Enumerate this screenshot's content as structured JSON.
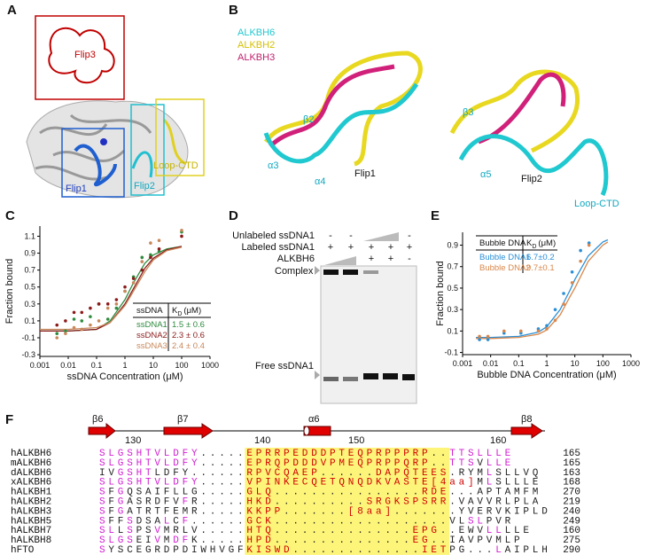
{
  "panel_labels": [
    "A",
    "B",
    "C",
    "D",
    "E",
    "F"
  ],
  "panel_a": {
    "regions": [
      "Flip3",
      "Flip1",
      "Flip2",
      "Loop-CTD"
    ]
  },
  "panel_b": {
    "legend": [
      "ALKBH6",
      "ALKBH2",
      "ALKBH3"
    ],
    "labels": [
      "β2",
      "α3",
      "α4",
      "Flip1",
      "β3",
      "α5",
      "Flip2",
      "Loop-CTD"
    ]
  },
  "chart_data": [
    {
      "type": "scatter",
      "xlabel": "ssDNA Concentration (μM)",
      "ylabel": "Fraction bound",
      "log_x": true,
      "xlim": [
        0.001,
        1000
      ],
      "xticks": [
        0.001,
        0.01,
        0.1,
        1,
        10,
        100,
        1000
      ],
      "ylim": [
        -0.32,
        1.22
      ],
      "yticks": [
        -0.3,
        -0.1,
        0.1,
        0.3,
        0.5,
        0.7,
        0.9,
        1.1
      ],
      "x": [
        0.004,
        0.008,
        0.016,
        0.03,
        0.06,
        0.12,
        0.25,
        0.5,
        1,
        2,
        4,
        8,
        16,
        100
      ],
      "series": [
        {
          "name": "ssDNA1",
          "color": "#2e8b3e",
          "values": [
            -0.05,
            -0.02,
            0.12,
            0.1,
            0.15,
            0.3,
            0.12,
            0.25,
            0.45,
            0.62,
            0.85,
            0.88,
            0.92,
            1.15
          ]
        },
        {
          "name": "ssDNA2",
          "color": "#8b1a1a",
          "values": [
            0.05,
            0.1,
            0.2,
            0.2,
            0.25,
            0.3,
            0.3,
            0.35,
            0.5,
            0.6,
            0.7,
            0.85,
            0.95,
            1.1
          ]
        },
        {
          "name": "ssDNA3",
          "color": "#c8875a",
          "values": [
            -0.1,
            -0.05,
            0.02,
            0.0,
            0.05,
            0.1,
            0.25,
            0.3,
            0.45,
            0.55,
            0.8,
            1.02,
            1.05,
            1.17
          ]
        }
      ],
      "fits": [
        {
          "color": "#2e8b3e",
          "x": [
            0.001,
            0.01,
            0.1,
            0.3,
            1,
            2,
            5,
            10,
            30,
            100
          ],
          "values": [
            -0.02,
            -0.02,
            0.0,
            0.1,
            0.35,
            0.55,
            0.78,
            0.88,
            0.95,
            0.98
          ]
        },
        {
          "color": "#8b1a1a",
          "x": [
            0.001,
            0.01,
            0.1,
            0.3,
            1,
            2,
            5,
            10,
            30,
            100
          ],
          "values": [
            -0.02,
            -0.02,
            0.0,
            0.08,
            0.3,
            0.48,
            0.72,
            0.84,
            0.94,
            0.98
          ]
        },
        {
          "color": "#c8875a",
          "x": [
            0.001,
            0.01,
            0.1,
            0.3,
            1,
            2,
            5,
            10,
            30,
            100
          ],
          "values": [
            0.0,
            0.0,
            0.02,
            0.08,
            0.28,
            0.45,
            0.68,
            0.82,
            0.93,
            0.97
          ]
        }
      ],
      "table": {
        "title": "ssDNA",
        "kd_symbol": "K",
        "kd_subscript": "D",
        "kd_unit": "(μM)",
        "kd_values": [
          "1.5 ± 0.6",
          "2.3 ± 0.6",
          "2.4 ± 0.4"
        ]
      }
    },
    {
      "type": "scatter",
      "xlabel": "Bubble DNA Concentration (μM)",
      "ylabel": "Fraction bound",
      "log_x": true,
      "xlim": [
        0.001,
        1000
      ],
      "xticks": [
        0.001,
        0.01,
        0.1,
        1,
        10,
        100,
        1000
      ],
      "ylim": [
        -0.12,
        1.02
      ],
      "yticks": [
        -0.1,
        0.1,
        0.3,
        0.5,
        0.7,
        0.9
      ],
      "x": [
        0.004,
        0.008,
        0.03,
        0.12,
        0.5,
        1,
        2,
        4,
        8,
        16,
        32
      ],
      "series": [
        {
          "name": "Bubble DNA1",
          "color": "#2a8fd6",
          "values": [
            0.02,
            0.02,
            0.08,
            0.08,
            0.12,
            0.15,
            0.3,
            0.45,
            0.65,
            0.85,
            0.92
          ]
        },
        {
          "name": "Bubble DNA2",
          "color": "#d8874a",
          "values": [
            0.05,
            0.05,
            0.1,
            0.1,
            0.1,
            0.12,
            0.2,
            0.35,
            0.55,
            0.75,
            0.9
          ]
        }
      ],
      "fits": [
        {
          "color": "#2a8fd6",
          "x": [
            0.003,
            0.01,
            0.1,
            0.5,
            1,
            3,
            6.7,
            10,
            30,
            100,
            150
          ],
          "values": [
            0.04,
            0.04,
            0.05,
            0.09,
            0.14,
            0.3,
            0.48,
            0.58,
            0.8,
            0.93,
            0.95
          ]
        },
        {
          "color": "#d8874a",
          "x": [
            0.003,
            0.01,
            0.1,
            0.5,
            1,
            3,
            6.7,
            10,
            30,
            100,
            150
          ],
          "values": [
            0.03,
            0.03,
            0.04,
            0.07,
            0.11,
            0.25,
            0.42,
            0.5,
            0.75,
            0.9,
            0.93
          ]
        }
      ],
      "table": {
        "title": "Bubble DNA",
        "kd_symbol": "K",
        "kd_subscript": "D",
        "kd_unit": "(μM)",
        "kd_values": [
          "6.7±0.2",
          "9.7±0.1"
        ]
      }
    }
  ],
  "panel_d": {
    "rows": [
      {
        "label": "Unlabeled ssDNA1",
        "signs": [
          "-",
          "-",
          null,
          null,
          "-"
        ]
      },
      {
        "label": "Labeled ssDNA1",
        "signs": [
          "+",
          "+",
          "+",
          "+",
          "+"
        ]
      },
      {
        "label": "ALKBH6",
        "signs": [
          null,
          null,
          "+",
          "+",
          "-"
        ]
      }
    ],
    "bands": [
      "Complex",
      "Free ssDNA1"
    ]
  },
  "panel_f": {
    "structure": [
      "β6",
      "β7",
      "α6",
      "β8"
    ],
    "positions": [
      130,
      140,
      150,
      160
    ],
    "rows": [
      {
        "name": "hALKBH6",
        "sequence": "SLGSHTVLDFY.....EPRRPEDDDPTEQPRPPPRP..TTSLLLE",
        "end": 165
      },
      {
        "name": "mALKBH6",
        "sequence": "SLGSHTVLDFY.....EPRQPDDDVPMEQPRPPQRP..TTSVLLE",
        "end": 165
      },
      {
        "name": "dALKBH6",
        "sequence": "IVGSHTLDFY......RPVCQAEP......DAPQTEES.RYMLSLLVQ",
        "end": 163
      },
      {
        "name": "xALKBH6",
        "sequence": "SLGSHTVLDFY.....VPINKECQETQNQDKVASTE[4aa]MLSLLLE",
        "end": 168
      },
      {
        "name": "hALKBH1",
        "sequence": "SFGQSAIFLLG.....GLQ................RDE...APTAMFM",
        "end": 270
      },
      {
        "name": "hALKBH2",
        "sequence": "SFGASRDFVFR.....HKD..........SRGKSPSRR.VAVVRLPLA",
        "end": 219
      },
      {
        "name": "hALKBH3",
        "sequence": "SFGATRTFEMR.....KKPP.......[8aa].......YVERVKIPLD",
        "end": 240
      },
      {
        "name": "hALKBH5",
        "sequence": "SFFSDSALCF......GCK...................VLSLPVR",
        "end": 249
      },
      {
        "name": "hALKBH7",
        "sequence": "SLLSPSVMRLV.....HTQ...............EPG..EWVLLLLE",
        "end": 160
      },
      {
        "name": "hALKBH8",
        "sequence": "SLGSEIVMDFK.....HPD...............EG..IAVPVMLP",
        "end": 275
      },
      {
        "name": "hFTO",
        "sequence": "SYSCEGRDPDIWHVGFKISWD..............IETPG...LAIPLH",
        "end": 290
      }
    ]
  }
}
